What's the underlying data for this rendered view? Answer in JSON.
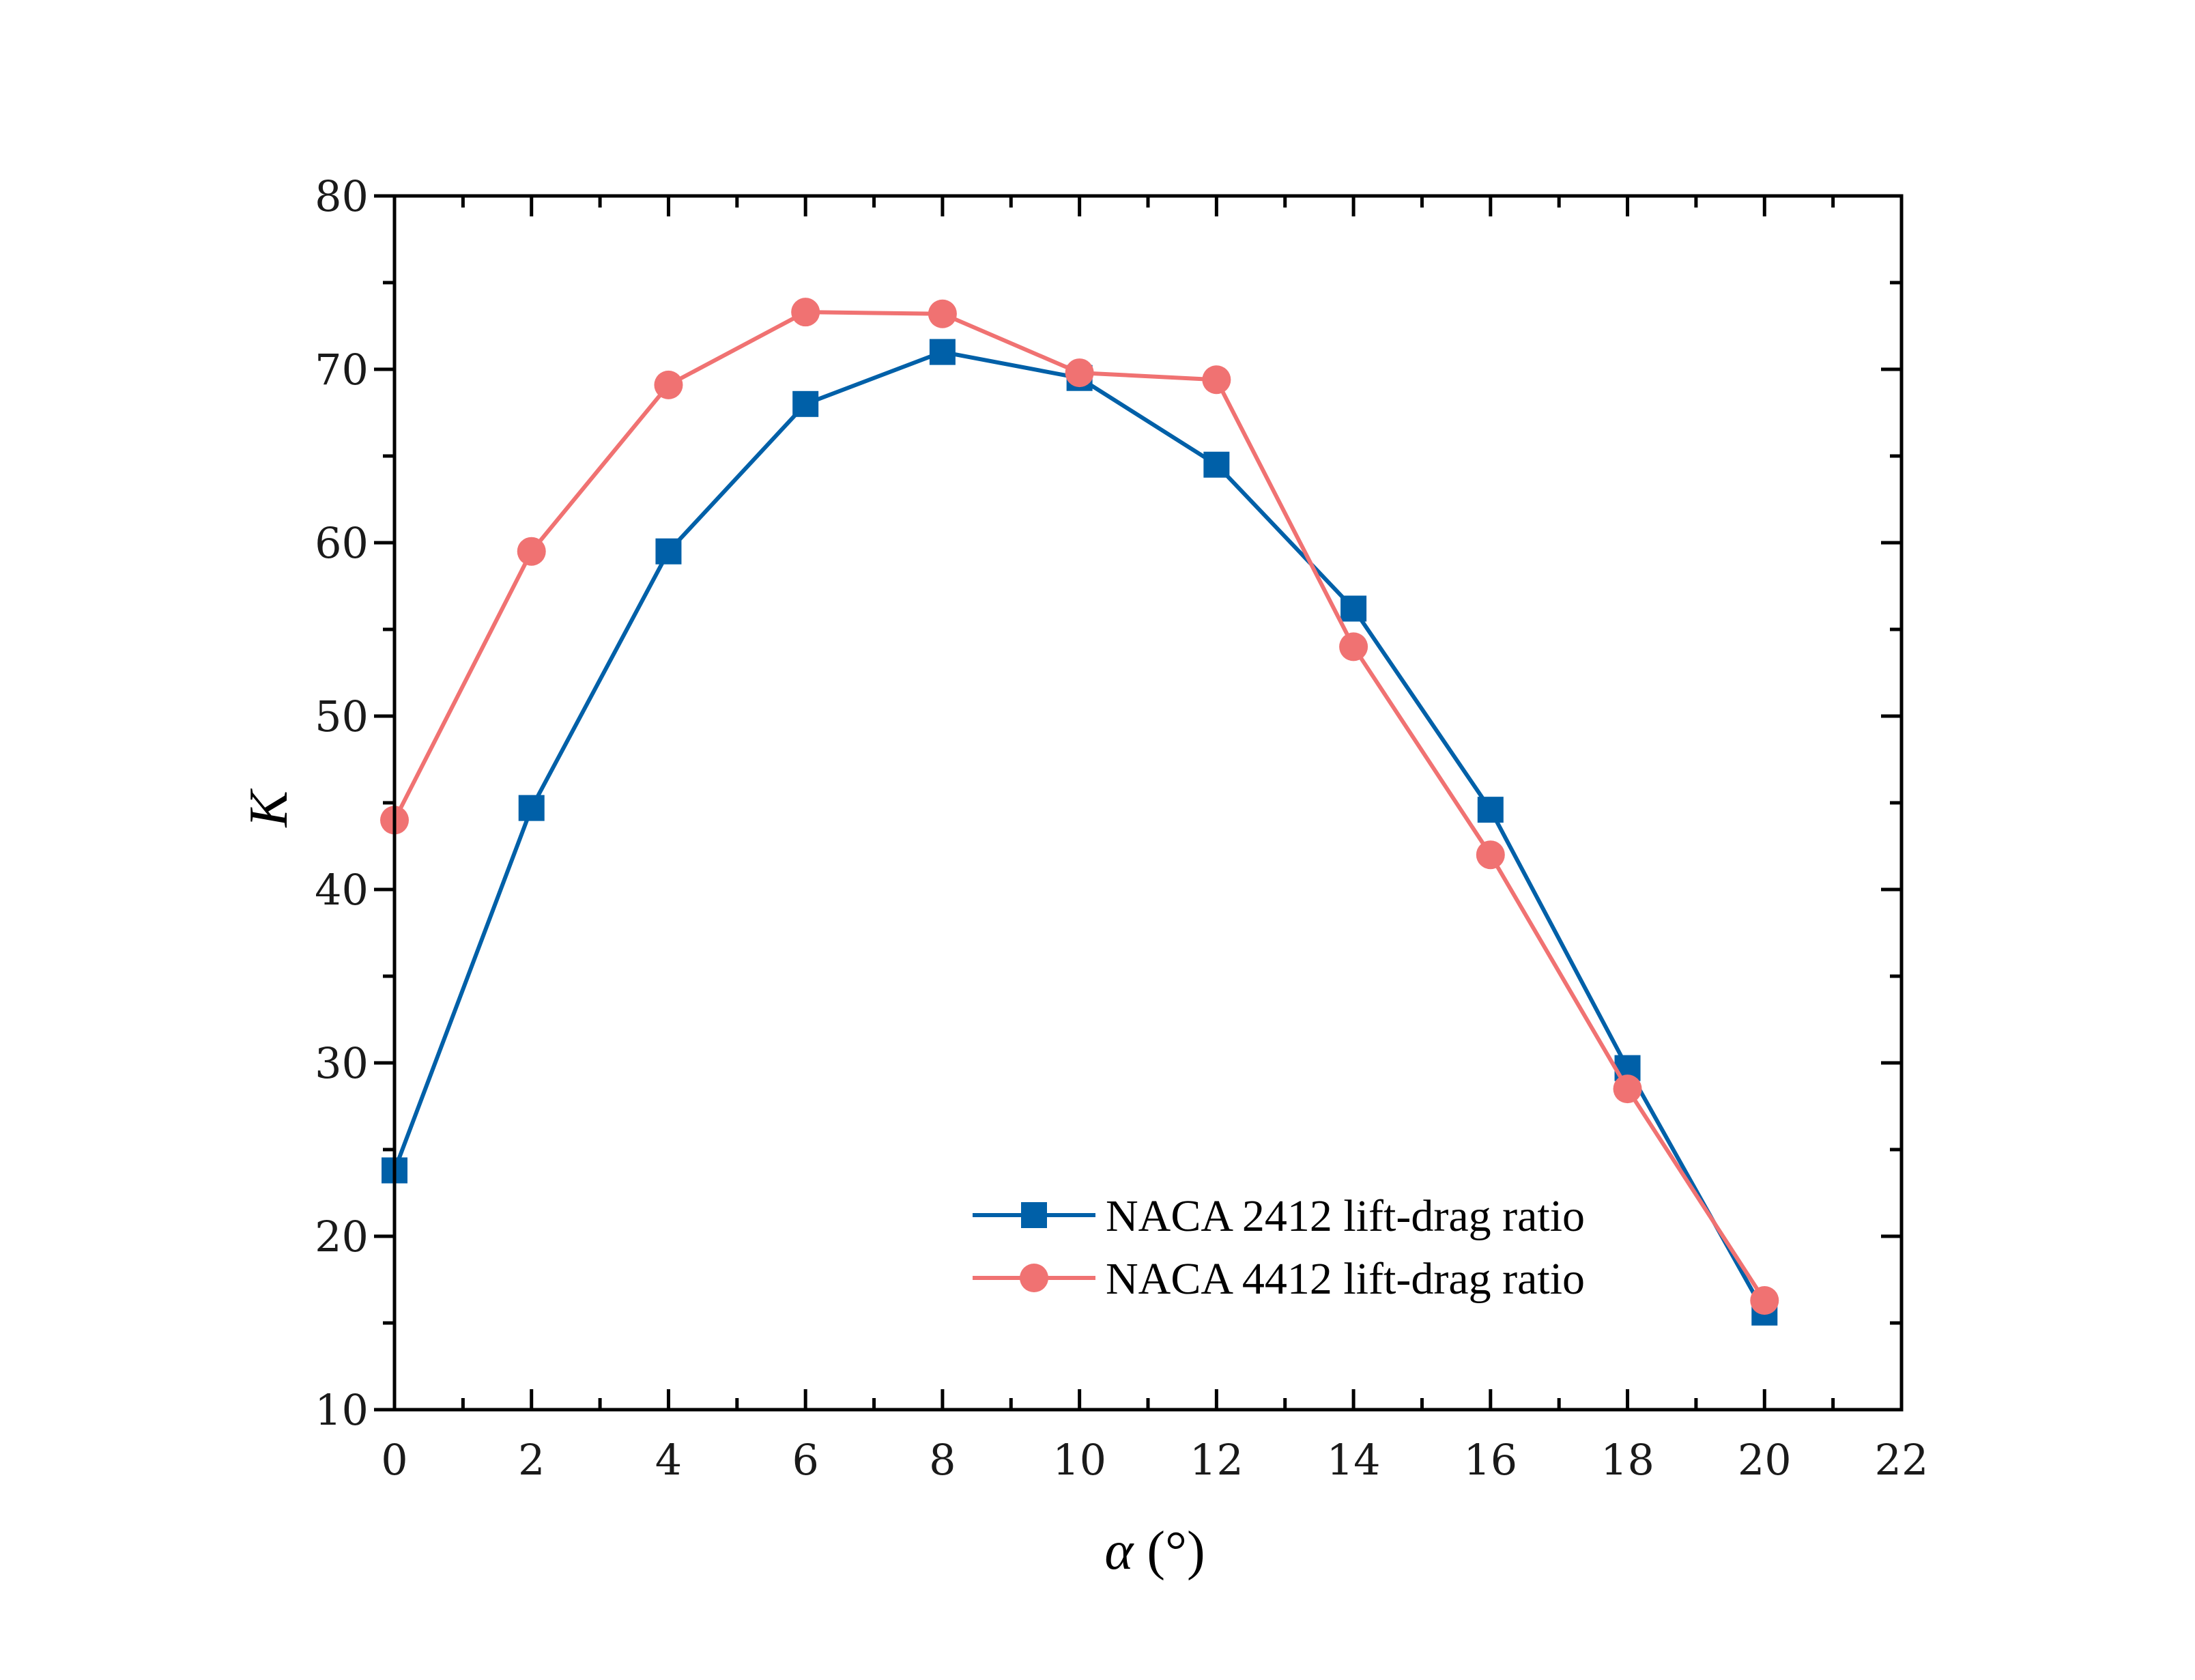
{
  "chart_data": {
    "type": "line",
    "title": "",
    "xlabel": "α (°)",
    "xlabel_parts": {
      "symbol": "α",
      "unit": " (°)"
    },
    "ylabel": "K",
    "xlim": [
      0,
      22
    ],
    "ylim": [
      10,
      80
    ],
    "x_ticks": [
      0,
      2,
      4,
      6,
      8,
      10,
      12,
      14,
      16,
      18,
      20,
      22
    ],
    "y_ticks": [
      10,
      20,
      30,
      40,
      50,
      60,
      70,
      80
    ],
    "legend_position": "bottom-right",
    "x": [
      0,
      2,
      4,
      6,
      8,
      10,
      12,
      14,
      16,
      18,
      20
    ],
    "series": [
      {
        "name": "NACA 2412 lift-drag ratio",
        "marker": "square",
        "color": "#0060a8",
        "values": [
          23.8,
          44.7,
          59.5,
          68.0,
          71.0,
          69.5,
          64.5,
          56.2,
          44.6,
          29.7,
          15.6
        ]
      },
      {
        "name": "NACA 4412 lift-drag ratio",
        "marker": "circle",
        "color": "#f07272",
        "values": [
          44.0,
          59.5,
          69.1,
          73.3,
          73.2,
          69.8,
          69.4,
          54.0,
          42.0,
          28.5,
          16.3
        ]
      }
    ]
  }
}
